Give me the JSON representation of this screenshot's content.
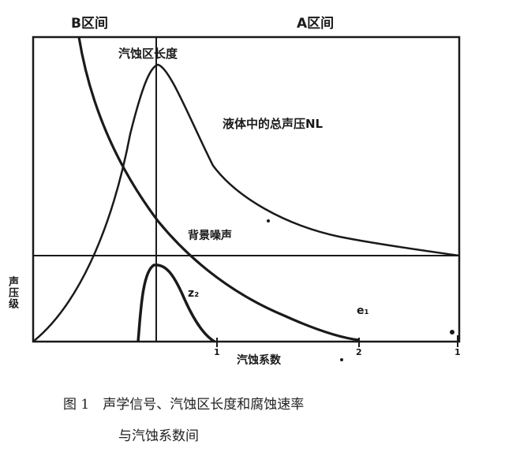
{
  "figure": {
    "region_b_label": "B区间",
    "region_a_label": "A区间",
    "cavitation_zone_label": "汽蚀区长度",
    "total_pressure_label": "液体中的总声压NL",
    "background_noise_label": "背景噪声",
    "x_axis_label": "汽蚀系数",
    "y_axis_label": "声压级",
    "curve_label_z2": "z₂",
    "curve_label_e1": "e₁",
    "tick_1": "1",
    "tick_2": "2",
    "tick_3": "1",
    "colors": {
      "ink": "#1a1a1a",
      "background": "#ffffff"
    }
  },
  "caption": {
    "line1": "图 1　声学信号、汽蚀区长度和腐蚀速率",
    "line2": "与汽蚀系数间"
  }
}
